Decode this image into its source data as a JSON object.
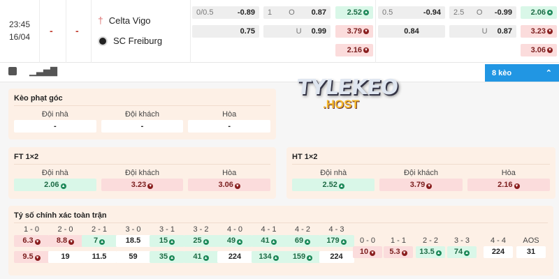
{
  "match": {
    "time": "23:45",
    "date": "16/04",
    "score_ft": "-",
    "score_ht": "-",
    "home": "Celta Vigo",
    "away": "SC Freiburg"
  },
  "odds": {
    "g1": {
      "hcap_line": "0/0.5",
      "hcap_home": "-0.89",
      "hcap_away": "0.75",
      "ou_line": "1",
      "ou_o": "O",
      "ou_over": "0.87",
      "ou_u": "U",
      "ou_under": "0.99",
      "x12": [
        "2.52",
        "3.79",
        "2.16"
      ]
    },
    "g2": {
      "hcap_line": "0.5",
      "hcap_home": "-0.94",
      "hcap_away": "0.84",
      "ou_line": "2.5",
      "ou_o": "O",
      "ou_over": "-0.99",
      "ou_u": "U",
      "ou_under": "0.87",
      "x12": [
        "2.06",
        "3.23",
        "3.06"
      ]
    }
  },
  "more_button": "8 kèo",
  "watermark": "TYLEKEO .HOST",
  "corner": {
    "title": "Kèo phạt góc",
    "cols": [
      "Đội nhà",
      "Đội khách",
      "Hòa"
    ],
    "values": [
      "-",
      "-",
      "-"
    ]
  },
  "ft": {
    "title": "FT 1×2",
    "cols": [
      "Đội nhà",
      "Đội khách",
      "Hòa"
    ],
    "values": [
      "2.06",
      "3.23",
      "3.06"
    ],
    "trend": [
      "up",
      "down",
      "down"
    ]
  },
  "ht": {
    "title": "HT 1×2",
    "cols": [
      "Đội nhà",
      "Đội khách",
      "Hòa"
    ],
    "values": [
      "2.52",
      "3.79",
      "2.16"
    ],
    "trend": [
      "up",
      "down",
      "down"
    ]
  },
  "correct_score": {
    "title": "Tỷ số chính xác toàn trận",
    "home": [
      {
        "score": "1 - 0",
        "a": "6.3",
        "at": "down",
        "b": "9.5",
        "bt": "down"
      },
      {
        "score": "2 - 0",
        "a": "8.8",
        "at": "down",
        "b": "19",
        "bt": "plain"
      },
      {
        "score": "2 - 1",
        "a": "7",
        "at": "up",
        "b": "11.5",
        "bt": "plain"
      },
      {
        "score": "3 - 0",
        "a": "18.5",
        "at": "plain",
        "b": "59",
        "bt": "plain"
      },
      {
        "score": "3 - 1",
        "a": "15",
        "at": "up",
        "b": "35",
        "bt": "up"
      },
      {
        "score": "3 - 2",
        "a": "25",
        "at": "up",
        "b": "41",
        "bt": "up"
      },
      {
        "score": "4 - 0",
        "a": "49",
        "at": "up",
        "b": "224",
        "bt": "plain"
      },
      {
        "score": "4 - 1",
        "a": "41",
        "at": "up",
        "b": "134",
        "bt": "up"
      },
      {
        "score": "4 - 2",
        "a": "69",
        "at": "up",
        "b": "159",
        "bt": "up"
      },
      {
        "score": "4 - 3",
        "a": "179",
        "at": "up",
        "b": "224",
        "bt": "plain"
      }
    ],
    "draw": [
      {
        "score": "0 - 0",
        "a": "10",
        "at": "down"
      },
      {
        "score": "1 - 1",
        "a": "5.3",
        "at": "down"
      },
      {
        "score": "2 - 2",
        "a": "13.5",
        "at": "up"
      },
      {
        "score": "3 - 3",
        "a": "74",
        "at": "up"
      },
      {
        "score": "4 - 4",
        "a": "224",
        "at": "plain"
      },
      {
        "score": "AOS",
        "a": "31",
        "at": "plain"
      }
    ]
  }
}
